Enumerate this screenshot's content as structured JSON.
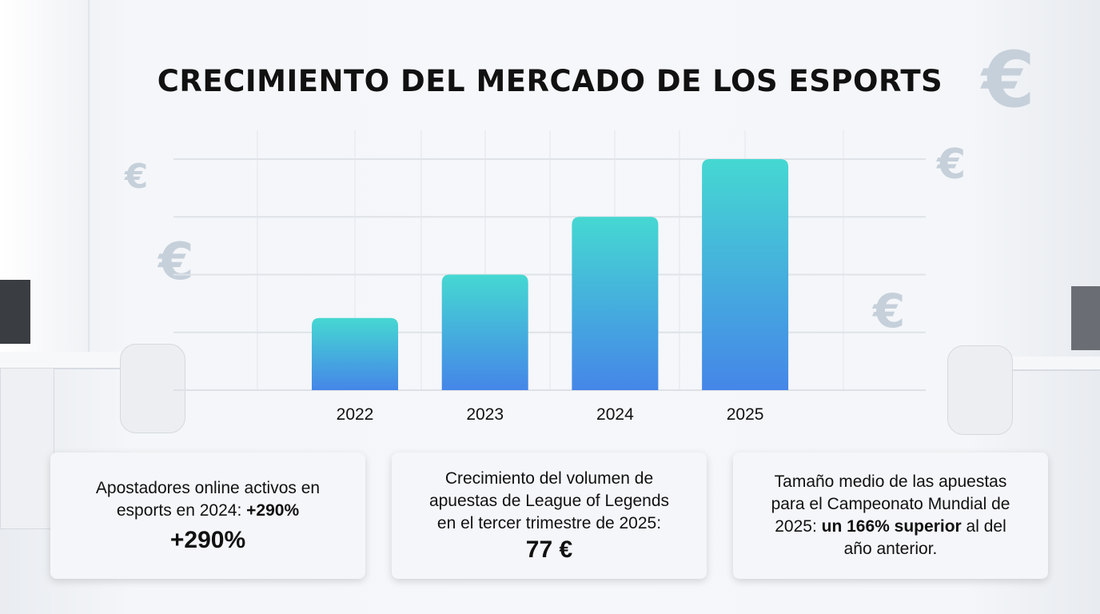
{
  "title": "CRECIMIENTO DEL MERCADO DE LOS ESPORTS",
  "chart_data": {
    "type": "bar",
    "title": "CRECIMIENTO DEL MERCADO DE LOS ESPORTS",
    "categories": [
      "2022",
      "2023",
      "2024",
      "2025"
    ],
    "values": [
      1.25,
      2,
      3,
      4
    ],
    "xlabel": "",
    "ylabel": "",
    "ylim": [
      0,
      4
    ],
    "grid": true,
    "colors": {
      "bar_top": "#45d8d2",
      "bar_bottom": "#4586e8"
    }
  },
  "decor": {
    "euro_symbol": "€"
  },
  "cards": [
    {
      "line1": "Apostadores online activos en",
      "line2_pre": "esports en 2024: ",
      "line2_bold": "+290%",
      "big": "+290%"
    },
    {
      "line1": "Crecimiento del volumen de",
      "line2": "apuestas de League of Legends",
      "line3": "en el tercer trimestre de 2025:",
      "big": "77 €"
    },
    {
      "line1": "Tamaño medio de las apuestas",
      "line2": "para el Campeonato Mundial de",
      "line3_pre": "2025: ",
      "line3_bold": "un 166% superior",
      "line3_post": " al del",
      "line4": "año anterior."
    }
  ]
}
